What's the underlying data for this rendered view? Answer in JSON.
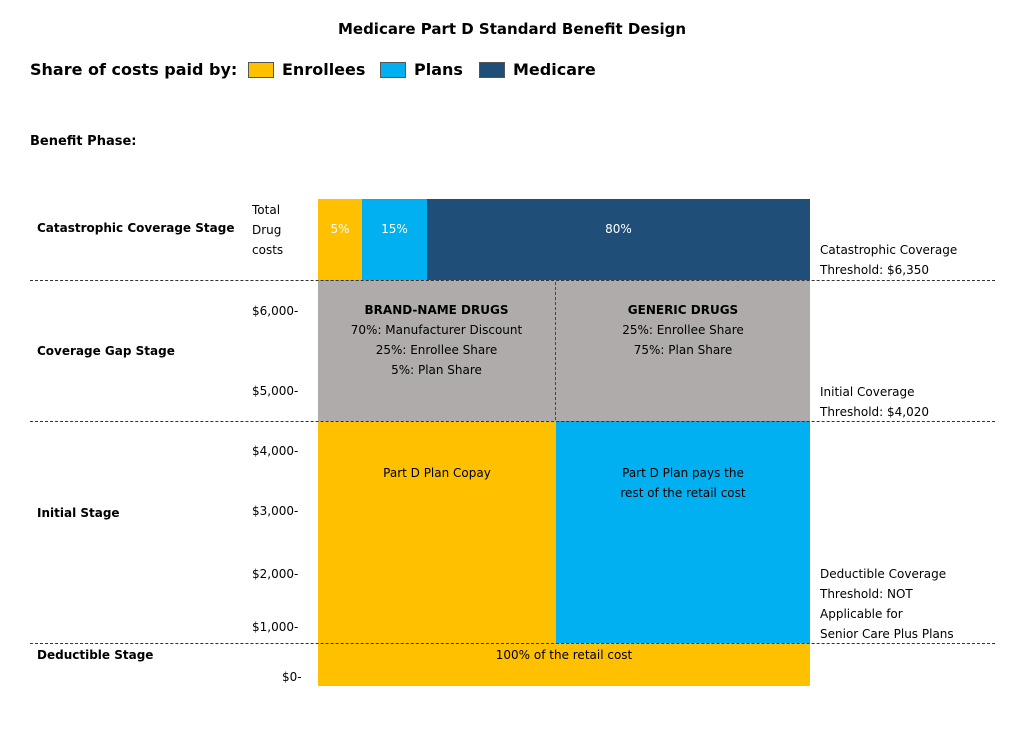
{
  "title": "Medicare Part D Standard Benefit Design",
  "legend": {
    "label": "Share of costs paid by:",
    "items": [
      {
        "label": "Enrollees",
        "color": "#FFC000"
      },
      {
        "label": "Plans",
        "color": "#00B0F0"
      },
      {
        "label": "Medicare",
        "color": "#1F4E79"
      }
    ]
  },
  "benefit_phase_label": "Benefit Phase:",
  "stages": {
    "catastrophic": "Catastrophic Coverage Stage",
    "coverage_gap": "Coverage Gap Stage",
    "initial": "Initial Stage",
    "deductible": "Deductible Stage"
  },
  "axis": {
    "total_label": [
      "Total",
      "Drug",
      "costs"
    ],
    "ticks": [
      "$6,000-",
      "$5,000-",
      "$4,000-",
      "$3,000-",
      "$2,000-",
      "$1,000-",
      "$0-"
    ]
  },
  "catastrophic_shares": {
    "enrollee": "5%",
    "plan": "15%",
    "medicare": "80%"
  },
  "coverage_gap": {
    "brand": {
      "heading": "BRAND-NAME DRUGS",
      "lines": [
        "70%: Manufacturer Discount",
        "25%: Enrollee Share",
        "5%: Plan Share"
      ]
    },
    "generic": {
      "heading": "GENERIC DRUGS",
      "lines": [
        "25%: Enrollee Share",
        "75%: Plan Share"
      ]
    }
  },
  "initial": {
    "copay": "Part D Plan Copay",
    "plan_pays": [
      "Part D Plan pays the",
      "rest of the retail cost"
    ]
  },
  "deductible": {
    "text": "100% of the retail cost"
  },
  "thresholds": {
    "catastrophic": [
      "Catastrophic Coverage",
      "Threshold: $6,350"
    ],
    "initial": [
      "Initial Coverage",
      "Threshold: $4,020"
    ],
    "deductible": [
      "Deductible Coverage",
      "Threshold: NOT",
      "Applicable for",
      "Senior Care Plus Plans"
    ]
  },
  "colors": {
    "enrollee": "#FFC000",
    "plan": "#00B0F0",
    "medicare": "#1F4E79",
    "gap": "#AFABAB"
  }
}
